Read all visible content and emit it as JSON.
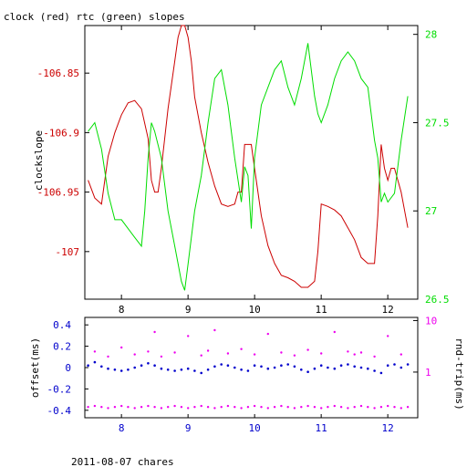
{
  "chart_data": [
    {
      "type": "line",
      "title": "clock (red) rtc (green) slopes",
      "ylabel_left": "clockslope",
      "xlim": [
        7.45,
        12.45
      ],
      "x_ticks": [
        8,
        9,
        10,
        11,
        12
      ],
      "x_tick_labels": [
        "8",
        "9",
        "10",
        "11",
        "12"
      ],
      "ylim_left": [
        -107.04,
        -106.81
      ],
      "y_ticks_left": [
        -106.85,
        -106.9,
        -106.95,
        -107
      ],
      "y_tick_labels_left": [
        "-106.85",
        "-106.9",
        "-106.95",
        "-107"
      ],
      "ylim_right": [
        26.5,
        28.05
      ],
      "y_ticks_right": [
        26.5,
        27,
        27.5,
        28
      ],
      "y_tick_labels_right": [
        "26.5",
        "27",
        "27.5",
        "28"
      ],
      "colors": {
        "clock": "#cc0000",
        "rtc": "#00dd00",
        "axis": "#000000"
      },
      "series": [
        {
          "axis": "left",
          "x": [
            7.5,
            7.6,
            7.7,
            7.8,
            7.9,
            8.0,
            8.1,
            8.2,
            8.3,
            8.4,
            8.45,
            8.5,
            8.55,
            8.6,
            8.7,
            8.8,
            8.85,
            8.9,
            8.95,
            9.0,
            9.05,
            9.1,
            9.2,
            9.3,
            9.4,
            9.5,
            9.6,
            9.7,
            9.75,
            9.8,
            9.85,
            9.9,
            9.95,
            10.0,
            10.1,
            10.2,
            10.3,
            10.4,
            10.5,
            10.6,
            10.7,
            10.8,
            10.9,
            10.95,
            11.0,
            11.1,
            11.2,
            11.3,
            11.4,
            11.5,
            11.6,
            11.7,
            11.8,
            11.85,
            11.9,
            11.95,
            12.0,
            12.05,
            12.1,
            12.2,
            12.3
          ],
          "values": [
            -106.94,
            -106.955,
            -106.96,
            -106.92,
            -106.9,
            -106.885,
            -106.875,
            -106.873,
            -106.88,
            -106.905,
            -106.94,
            -106.95,
            -106.95,
            -106.93,
            -106.88,
            -106.84,
            -106.82,
            -106.81,
            -106.81,
            -106.82,
            -106.84,
            -106.87,
            -106.9,
            -106.925,
            -106.945,
            -106.96,
            -106.962,
            -106.96,
            -106.95,
            -106.95,
            -106.91,
            -106.91,
            -106.91,
            -106.93,
            -106.97,
            -106.995,
            -107.01,
            -107.02,
            -107.022,
            -107.025,
            -107.03,
            -107.03,
            -107.025,
            -107.0,
            -106.96,
            -106.962,
            -106.965,
            -106.97,
            -106.98,
            -106.99,
            -107.005,
            -107.01,
            -107.01,
            -106.97,
            -106.91,
            -106.93,
            -106.94,
            -106.93,
            -106.93,
            -106.95,
            -106.98
          ]
        },
        {
          "axis": "right",
          "x": [
            7.5,
            7.6,
            7.7,
            7.8,
            7.9,
            8.0,
            8.1,
            8.2,
            8.3,
            8.35,
            8.4,
            8.45,
            8.5,
            8.6,
            8.7,
            8.8,
            8.9,
            8.95,
            9.0,
            9.05,
            9.1,
            9.2,
            9.3,
            9.4,
            9.5,
            9.6,
            9.7,
            9.8,
            9.85,
            9.9,
            9.95,
            10.0,
            10.1,
            10.2,
            10.3,
            10.4,
            10.5,
            10.6,
            10.7,
            10.8,
            10.9,
            10.95,
            11.0,
            11.1,
            11.2,
            11.3,
            11.4,
            11.5,
            11.6,
            11.7,
            11.8,
            11.85,
            11.9,
            11.95,
            12.0,
            12.1,
            12.2,
            12.3
          ],
          "values": [
            27.45,
            27.5,
            27.35,
            27.1,
            26.95,
            26.95,
            26.9,
            26.85,
            26.8,
            27.0,
            27.3,
            27.5,
            27.45,
            27.3,
            27.0,
            26.8,
            26.6,
            26.55,
            26.7,
            26.85,
            27.0,
            27.2,
            27.5,
            27.75,
            27.8,
            27.6,
            27.3,
            27.05,
            27.25,
            27.2,
            26.9,
            27.3,
            27.6,
            27.7,
            27.8,
            27.85,
            27.7,
            27.6,
            27.75,
            27.95,
            27.65,
            27.55,
            27.5,
            27.6,
            27.75,
            27.85,
            27.9,
            27.85,
            27.75,
            27.7,
            27.4,
            27.3,
            27.05,
            27.1,
            27.05,
            27.1,
            27.4,
            27.65
          ]
        }
      ]
    },
    {
      "type": "scatter",
      "ylabel_left": "offset(ms)",
      "ylabel_right": "rnd-trip(ms)",
      "xlim": [
        7.45,
        12.45
      ],
      "x_ticks": [
        8,
        9,
        10,
        11,
        12
      ],
      "x_tick_labels": [
        "8",
        "9",
        "10",
        "11",
        "12"
      ],
      "ylim_left": [
        -0.47,
        0.47
      ],
      "y_ticks_left": [
        0.4,
        0.2,
        0,
        -0.2,
        -0.4
      ],
      "y_tick_labels_left": [
        "0.4",
        "0.2",
        "0",
        "-0.2",
        "-0.4"
      ],
      "y_right_scale": "log",
      "ylim_right": [
        0.13,
        11.5
      ],
      "y_ticks_right": [
        1,
        10
      ],
      "y_tick_labels_right": [
        "1",
        "10"
      ],
      "colors": {
        "offset": "#0000cc",
        "roundtrip": "#ee00ee",
        "axis": "#000000"
      },
      "series": [
        {
          "axis": "left",
          "x": [
            7.5,
            7.6,
            7.7,
            7.8,
            7.9,
            8.0,
            8.1,
            8.2,
            8.3,
            8.4,
            8.5,
            8.6,
            8.7,
            8.8,
            8.9,
            9.0,
            9.1,
            9.2,
            9.3,
            9.4,
            9.5,
            9.6,
            9.7,
            9.8,
            9.9,
            10.0,
            10.1,
            10.2,
            10.3,
            10.4,
            10.5,
            10.6,
            10.7,
            10.8,
            10.9,
            11.0,
            11.1,
            11.2,
            11.3,
            11.4,
            11.5,
            11.6,
            11.7,
            11.8,
            11.9,
            12.0,
            12.1,
            12.2,
            12.3
          ],
          "values": [
            0.02,
            0.05,
            0.01,
            -0.01,
            -0.02,
            -0.03,
            -0.02,
            0.0,
            0.02,
            0.04,
            0.02,
            -0.01,
            -0.02,
            -0.03,
            -0.02,
            -0.01,
            -0.03,
            -0.05,
            -0.02,
            0.01,
            0.03,
            0.02,
            0.0,
            -0.02,
            -0.03,
            0.02,
            0.01,
            -0.01,
            0.0,
            0.02,
            0.03,
            0.01,
            -0.02,
            -0.04,
            -0.01,
            0.02,
            0.0,
            -0.01,
            0.02,
            0.03,
            0.01,
            0.0,
            -0.01,
            -0.03,
            -0.05,
            0.02,
            0.03,
            0.0,
            0.03
          ]
        },
        {
          "axis": "right",
          "x": [
            7.5,
            7.6,
            7.7,
            7.8,
            7.9,
            8.0,
            8.1,
            8.2,
            8.3,
            8.4,
            8.5,
            8.6,
            8.7,
            8.8,
            8.9,
            9.0,
            9.1,
            9.2,
            9.3,
            9.4,
            9.5,
            9.6,
            9.7,
            9.8,
            9.9,
            10.0,
            10.1,
            10.2,
            10.3,
            10.4,
            10.5,
            10.6,
            10.7,
            10.8,
            10.9,
            11.0,
            11.1,
            11.2,
            11.3,
            11.4,
            11.5,
            11.6,
            11.7,
            11.8,
            11.9,
            12.0,
            12.1,
            12.2,
            12.3
          ],
          "values": [
            0.21,
            0.22,
            0.21,
            0.2,
            0.21,
            0.22,
            0.21,
            0.2,
            0.21,
            0.22,
            0.21,
            0.2,
            0.21,
            0.22,
            0.21,
            0.2,
            0.21,
            0.22,
            0.21,
            0.2,
            0.21,
            0.22,
            0.21,
            0.2,
            0.21,
            0.22,
            0.21,
            0.2,
            0.21,
            0.22,
            0.21,
            0.2,
            0.21,
            0.22,
            0.21,
            0.2,
            0.21,
            0.22,
            0.21,
            0.2,
            0.21,
            0.22,
            0.21,
            0.2,
            0.21,
            0.22,
            0.21,
            0.2,
            0.21
          ]
        },
        {
          "axis": "right",
          "x": [
            7.6,
            7.8,
            8.0,
            8.2,
            8.4,
            8.5,
            8.6,
            8.8,
            9.0,
            9.2,
            9.3,
            9.4,
            9.6,
            9.8,
            10.0,
            10.2,
            10.4,
            10.6,
            10.8,
            11.0,
            11.2,
            11.4,
            11.5,
            11.6,
            11.8,
            12.0,
            12.2
          ],
          "values": [
            2.5,
            2.0,
            3.0,
            2.2,
            2.5,
            6.0,
            2.0,
            2.4,
            5.0,
            2.1,
            2.6,
            6.5,
            2.3,
            2.8,
            2.2,
            5.5,
            2.4,
            2.1,
            2.7,
            2.3,
            6.0,
            2.5,
            2.2,
            2.4,
            2.0,
            5.0,
            2.2
          ]
        }
      ]
    }
  ],
  "footer": {
    "caption": "2011-08-07 chares"
  }
}
